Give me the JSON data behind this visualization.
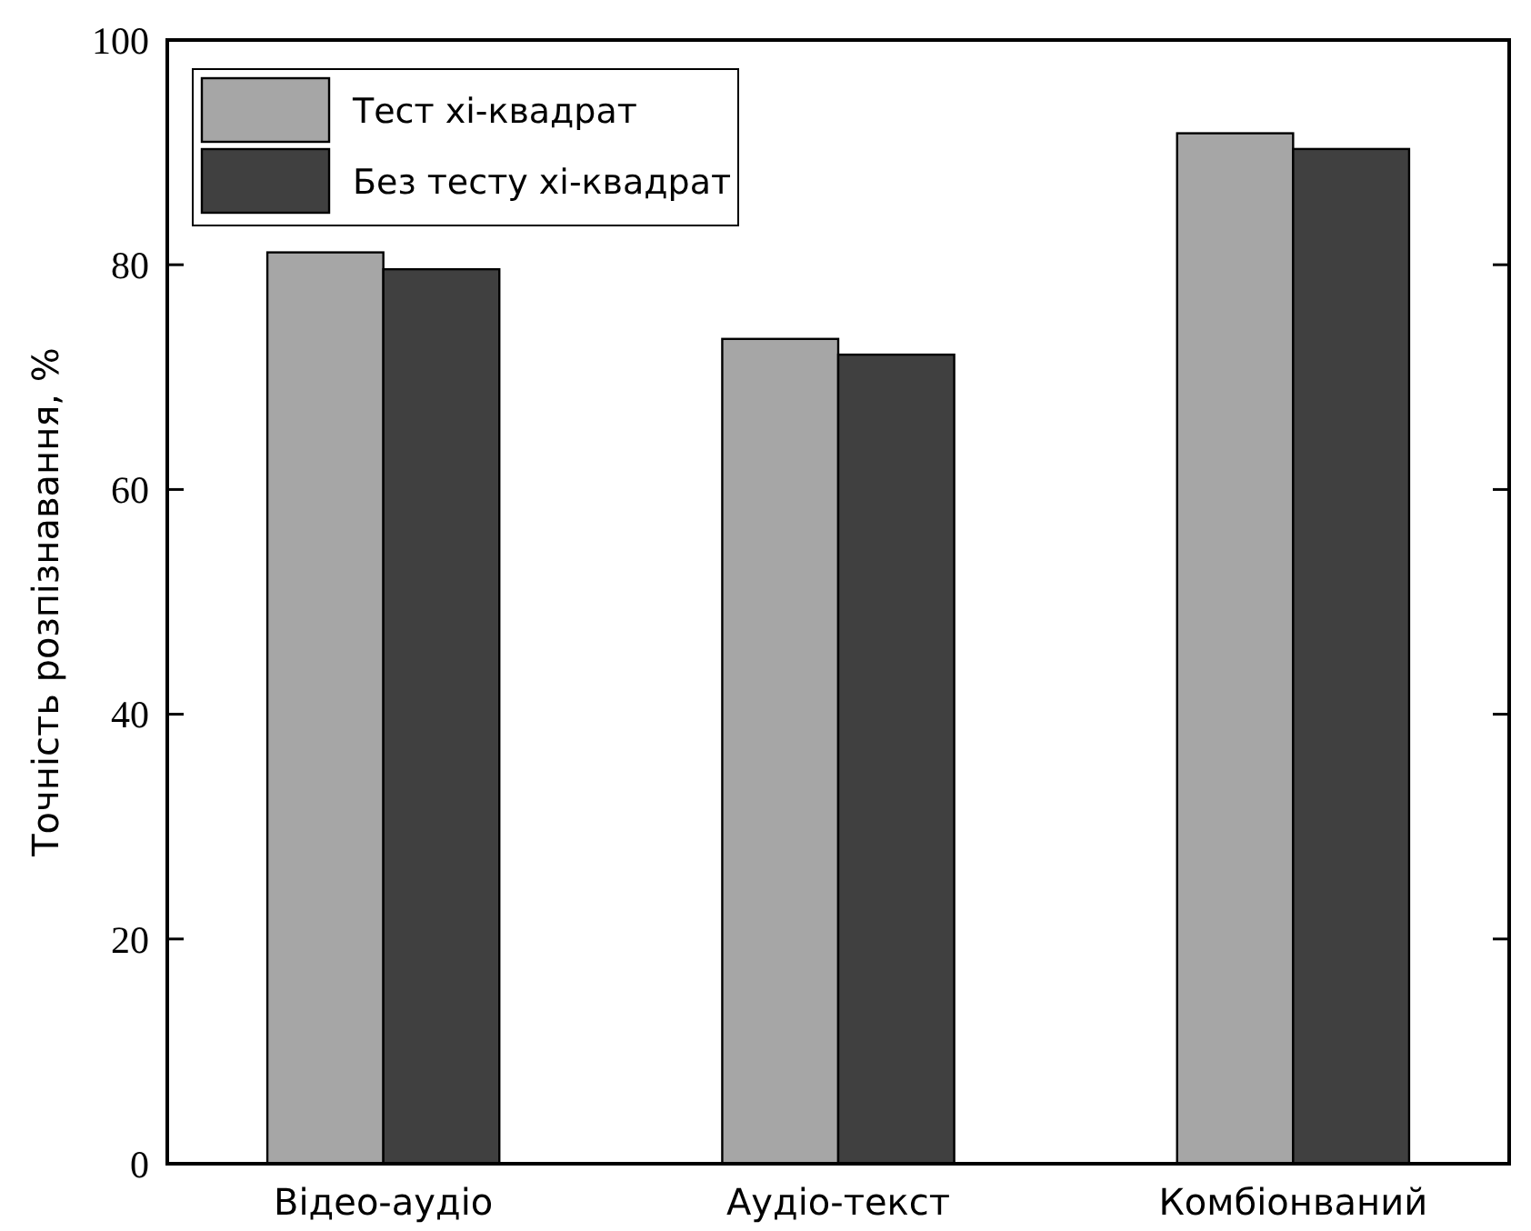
{
  "chart_data": {
    "type": "bar",
    "ylabel": "Точність розпізнавання, %",
    "categories": [
      "Відео-аудіо",
      "Аудіо-текст",
      "Комбіонваний"
    ],
    "series": [
      {
        "name": "Тест хі-квадрат",
        "color": "#a6a6a6",
        "values": [
          81.1,
          73.4,
          91.7
        ]
      },
      {
        "name": "Без тесту хі-квадрат",
        "color": "#404040",
        "values": [
          79.6,
          72.0,
          90.3
        ]
      }
    ],
    "ylim": [
      0,
      100
    ],
    "yticks": [
      0,
      20,
      40,
      60,
      80,
      100
    ],
    "legend": "top left"
  }
}
